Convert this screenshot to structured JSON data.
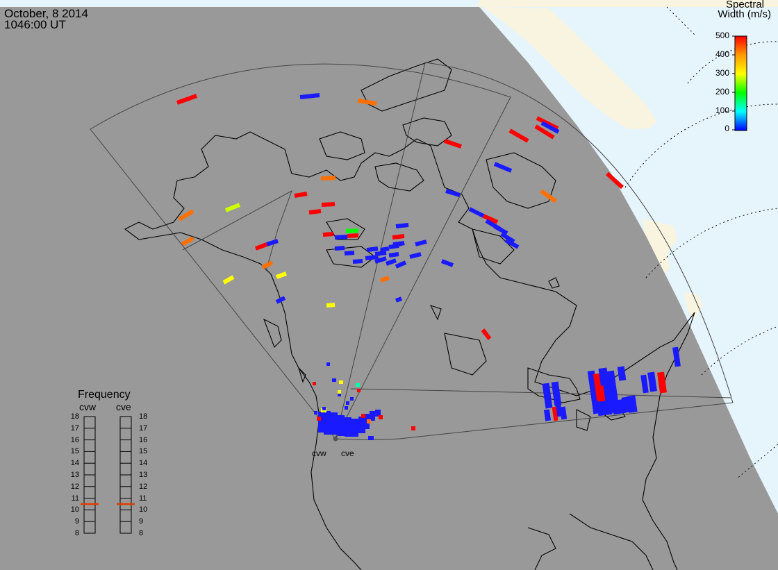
{
  "header": {
    "date": "October, 8 2014",
    "time": "1046:00 UT"
  },
  "colorbar": {
    "title_line1": "Spectral",
    "title_line2": "Width (m/s)",
    "ticks": [
      "500",
      "400",
      "300",
      "200",
      "100",
      "0"
    ],
    "range": [
      0,
      500
    ],
    "colors": [
      "#ff0000",
      "#ff9900",
      "#ffff00",
      "#00ff00",
      "#00ffff",
      "#0000ff"
    ]
  },
  "radars": {
    "west_label": "cvw",
    "east_label": "cve"
  },
  "frequency_panel": {
    "title": "Frequency",
    "col_west": "cvw",
    "col_east": "cve",
    "ticks": [
      "18",
      "17",
      "16",
      "15",
      "14",
      "13",
      "12",
      "11",
      "10",
      "9",
      "8"
    ],
    "cvw_frequency_mhz": 10.5,
    "cve_frequency_mhz": 10.5,
    "marker_color": "#e03c00"
  },
  "map_colors": {
    "night": "#999999",
    "day_ocean": "#e6f4fc",
    "day_land": "#f8f4e0",
    "coast": "#000000",
    "fov": "#444444"
  }
}
